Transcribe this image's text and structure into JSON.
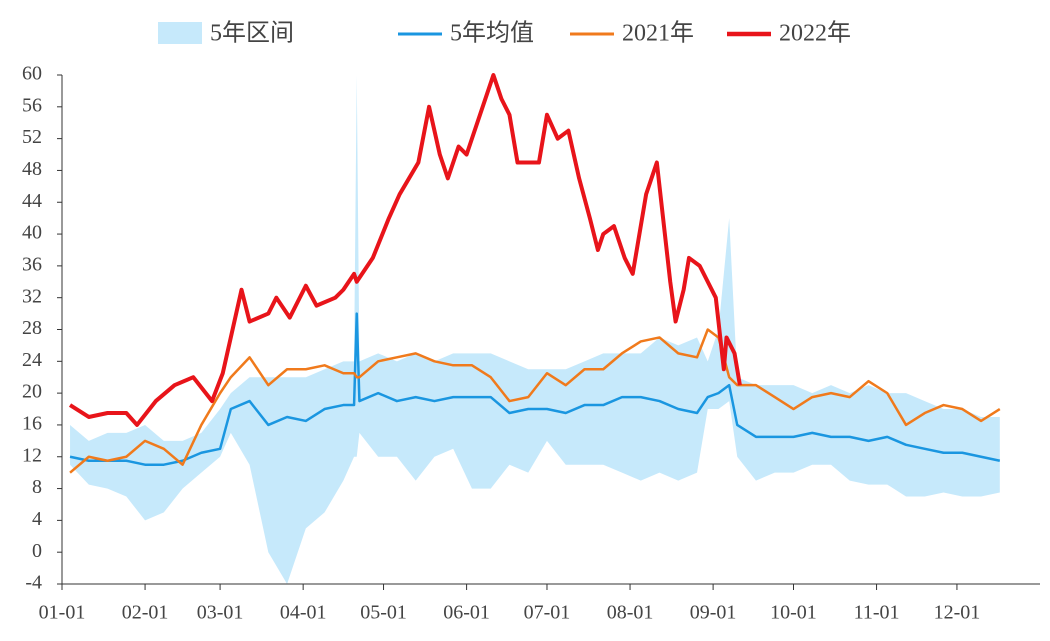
{
  "chart_data": {
    "type": "line",
    "x": [
      3,
      10,
      17,
      24,
      31,
      38,
      45,
      52,
      59,
      63,
      70,
      77,
      84,
      91,
      98,
      105,
      109,
      110,
      111,
      118,
      125,
      132,
      139,
      146,
      153,
      160,
      167,
      174,
      181,
      188,
      195,
      202,
      209,
      216,
      223,
      230,
      237,
      241,
      245,
      249,
      252,
      259,
      266,
      273,
      280,
      287,
      294,
      301,
      308,
      315,
      322,
      329,
      336,
      343,
      350
    ],
    "xlim": [
      0,
      365
    ],
    "xticks": [
      {
        "value": 0,
        "label": "01-01"
      },
      {
        "value": 31,
        "label": "02-01"
      },
      {
        "value": 59,
        "label": "03-01"
      },
      {
        "value": 90,
        "label": "04-01"
      },
      {
        "value": 120,
        "label": "05-01"
      },
      {
        "value": 151,
        "label": "06-01"
      },
      {
        "value": 181,
        "label": "07-01"
      },
      {
        "value": 212,
        "label": "08-01"
      },
      {
        "value": 243,
        "label": "09-01"
      },
      {
        "value": 273,
        "label": "10-01"
      },
      {
        "value": 304,
        "label": "11-01"
      },
      {
        "value": 334,
        "label": "12-01"
      }
    ],
    "ylim": [
      -4,
      60
    ],
    "yticks": [
      -4,
      0,
      4,
      8,
      12,
      16,
      20,
      24,
      28,
      32,
      36,
      40,
      44,
      48,
      52,
      56,
      60
    ],
    "series": [
      {
        "name": "5年区间",
        "kind": "band",
        "color": "#c6e9fb",
        "lower": [
          11,
          8.5,
          8,
          7,
          4,
          5,
          8,
          10,
          12,
          15,
          11,
          0,
          -4,
          3,
          5,
          9,
          12,
          12,
          15,
          12,
          12,
          9,
          12,
          13,
          8,
          8,
          11,
          10,
          14,
          11,
          11,
          11,
          10,
          9,
          10,
          9,
          10,
          18,
          18,
          19,
          12,
          9,
          10,
          10,
          11,
          11,
          9,
          8.5,
          8.5,
          7,
          7,
          7.5,
          7,
          7,
          7.5
        ],
        "values": [
          16,
          14,
          15,
          15,
          16,
          14,
          14,
          15,
          18,
          20,
          22,
          22,
          22,
          22,
          23,
          24,
          24,
          60,
          24,
          25,
          24,
          25,
          24,
          25,
          25,
          25,
          24,
          23,
          23,
          23,
          24,
          25,
          25,
          25,
          27,
          26,
          27,
          24,
          28,
          42,
          22,
          21,
          21,
          21,
          20,
          21,
          20,
          21,
          20,
          20,
          19,
          18,
          18,
          17,
          17
        ]
      },
      {
        "name": "5年均值",
        "color": "#1a96e0",
        "values": [
          12,
          11.5,
          11.5,
          11.5,
          11,
          11,
          11.5,
          12.5,
          13,
          18,
          19,
          16,
          17,
          16.5,
          18,
          18.5,
          18.5,
          30,
          19,
          20,
          19,
          19.5,
          19,
          19.5,
          19.5,
          19.5,
          17.5,
          18,
          18,
          17.5,
          18.5,
          18.5,
          19.5,
          19.5,
          19,
          18,
          17.5,
          19.5,
          20,
          21,
          16,
          14.5,
          14.5,
          14.5,
          15,
          14.5,
          14.5,
          14,
          14.5,
          13.5,
          13,
          12.5,
          12.5,
          12,
          11.5
        ]
      },
      {
        "name": "2021年",
        "color": "#f07a1c",
        "values": [
          10,
          12,
          11.5,
          12,
          14,
          13,
          11,
          16,
          20,
          22,
          24.5,
          21,
          23,
          23,
          23.5,
          22.5,
          22.5,
          22,
          22,
          24,
          24.5,
          25,
          24,
          23.5,
          23.5,
          22,
          19,
          19.5,
          22.5,
          21,
          23,
          23,
          25,
          26.5,
          27,
          25,
          24.5,
          28,
          27,
          22,
          21,
          21,
          19.5,
          18,
          19.5,
          20,
          19.5,
          21.5,
          20,
          16,
          17.5,
          18.5,
          18,
          16.5,
          18
        ]
      },
      {
        "name": "2022年",
        "color": "#e8141a",
        "width": 4,
        "x": [
          3,
          10,
          17,
          24,
          28,
          35,
          42,
          49,
          56,
          60,
          63,
          67,
          70,
          77,
          80,
          85,
          91,
          95,
          102,
          105,
          109,
          110,
          116,
          122,
          126,
          133,
          137,
          141,
          144,
          148,
          151,
          154,
          158,
          161,
          164,
          167,
          170,
          174,
          178,
          181,
          185,
          189,
          193,
          197,
          200,
          202,
          206,
          210,
          213,
          215,
          218,
          222,
          225,
          227,
          229,
          232,
          234,
          238,
          241,
          244,
          247,
          248,
          251,
          253
        ],
        "values": [
          18.5,
          17,
          17.5,
          17.5,
          16,
          19,
          21,
          22,
          19,
          22.5,
          27,
          33,
          29,
          30,
          32,
          29.5,
          33.5,
          31,
          32,
          33,
          35,
          34,
          37,
          42,
          45,
          49,
          56,
          50,
          47,
          51,
          50,
          53,
          57,
          60,
          57,
          55,
          49,
          49,
          49,
          55,
          52,
          53,
          47,
          42,
          38,
          40,
          41,
          37,
          35,
          39,
          45,
          49,
          40,
          34,
          29,
          33,
          37,
          36,
          34,
          32,
          23,
          27,
          25,
          21
        ]
      }
    ]
  }
}
